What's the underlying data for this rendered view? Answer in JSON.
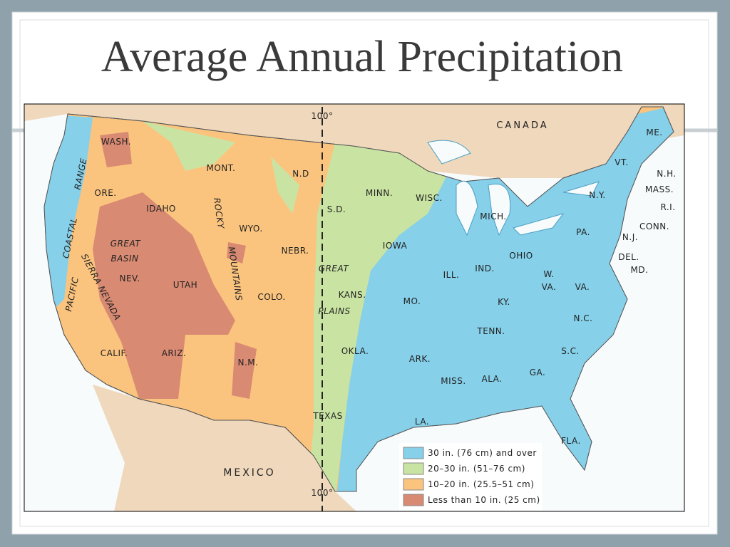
{
  "title": "Average Annual Precipitation",
  "map": {
    "labels": [
      "CANADA",
      "MEXICO",
      "WASH.",
      "MONT.",
      "N.D",
      "MINN.",
      "WISC.",
      "MICH.",
      "ME.",
      "VT.",
      "N.H.",
      "MASS.",
      "R.I.",
      "CONN.",
      "N.Y.",
      "PA.",
      "N.J.",
      "DEL.",
      "MD.",
      "OHIO",
      "IND.",
      "ILL.",
      "IOWA",
      "S.D.",
      "WYO.",
      "IDAHO",
      "ORE.",
      "NEBR.",
      "GREAT",
      "PLAINS",
      "KANS.",
      "MO.",
      "KY.",
      "W.",
      "VA.",
      "VA.",
      "N.C.",
      "TENN.",
      "S.C.",
      "GA.",
      "ALA.",
      "MISS.",
      "ARK.",
      "LA.",
      "FLA.",
      "TEXAS",
      "OKLA.",
      "N.M.",
      "ARIZ.",
      "CALIF.",
      "NEV.",
      "UTAH",
      "COLO.",
      "GREAT",
      "BASIN",
      "SIERRA NEVADA",
      "COASTAL",
      "RANGE",
      "PACIFIC",
      "ROCKY",
      "MOUNTAINS",
      "100°",
      "100°"
    ],
    "legend": [
      {
        "label": "30 in. (76 cm) and over",
        "color": "#86d0ea"
      },
      {
        "label": "20–30 in. (51–76 cm)",
        "color": "#c9e4a2"
      },
      {
        "label": "10–20 in. (25.5–51 cm)",
        "color": "#fbc47e"
      },
      {
        "label": "Less than 10 in. (25 cm)",
        "color": "#d98a72"
      }
    ]
  }
}
